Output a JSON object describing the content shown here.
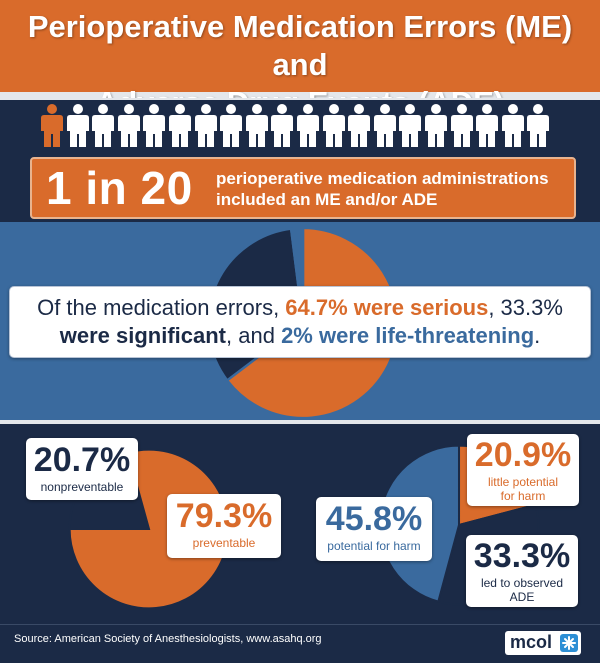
{
  "title": {
    "line1": "Perioperative Medication Errors (ME) and",
    "line2": "Adverse Drug Events (ADE)"
  },
  "people": {
    "total": 20,
    "highlighted": 1,
    "highlight_color": "#d96b2b",
    "other_color": "#ffffff"
  },
  "headline_stat": {
    "value": "1 in 20",
    "text_line1": "perioperative medication administrations",
    "text_line2": "included an ME and/or ADE"
  },
  "severity": {
    "sentence": {
      "part1": "Of the medication errors, ",
      "serious": "64.7% were serious",
      "part2": ", 33.3%",
      "significant": "were significant",
      "part3": ", and ",
      "life": "2% were life-threatening",
      "part4": "."
    }
  },
  "preventability": {
    "nonpreventable": {
      "value": "20.7%",
      "label": "nonpreventable"
    },
    "preventable": {
      "value": "79.3%",
      "label": "preventable"
    }
  },
  "harm": {
    "little": {
      "value": "20.9%",
      "label_line1": "little potential",
      "label_line2": "for harm"
    },
    "potential": {
      "value": "45.8%",
      "label": "potential for harm"
    },
    "observed": {
      "value": "33.3%",
      "label_line1": "led to observed",
      "label_line2": "ADE"
    }
  },
  "chart_data": [
    {
      "type": "pie",
      "categories": [
        "serious",
        "significant",
        "life-threatening"
      ],
      "values": [
        64.7,
        33.3,
        2
      ],
      "colors": [
        "#d96b2b",
        "#1b2a46",
        "#3a6a9e"
      ]
    },
    {
      "type": "pie",
      "categories": [
        "nonpreventable",
        "preventable"
      ],
      "values": [
        20.7,
        79.3
      ],
      "colors": [
        "#1b2a46",
        "#d96b2b"
      ]
    },
    {
      "type": "pie",
      "categories": [
        "little potential for harm",
        "led to observed ADE",
        "potential for harm"
      ],
      "values": [
        20.9,
        33.3,
        45.8
      ],
      "colors": [
        "#d96b2b",
        "#1b2a46",
        "#3a6a9e"
      ]
    }
  ],
  "footer": {
    "source": "Source:  American Society of Anesthesiologists, www.asahq.org",
    "logo_text": "mcol"
  }
}
